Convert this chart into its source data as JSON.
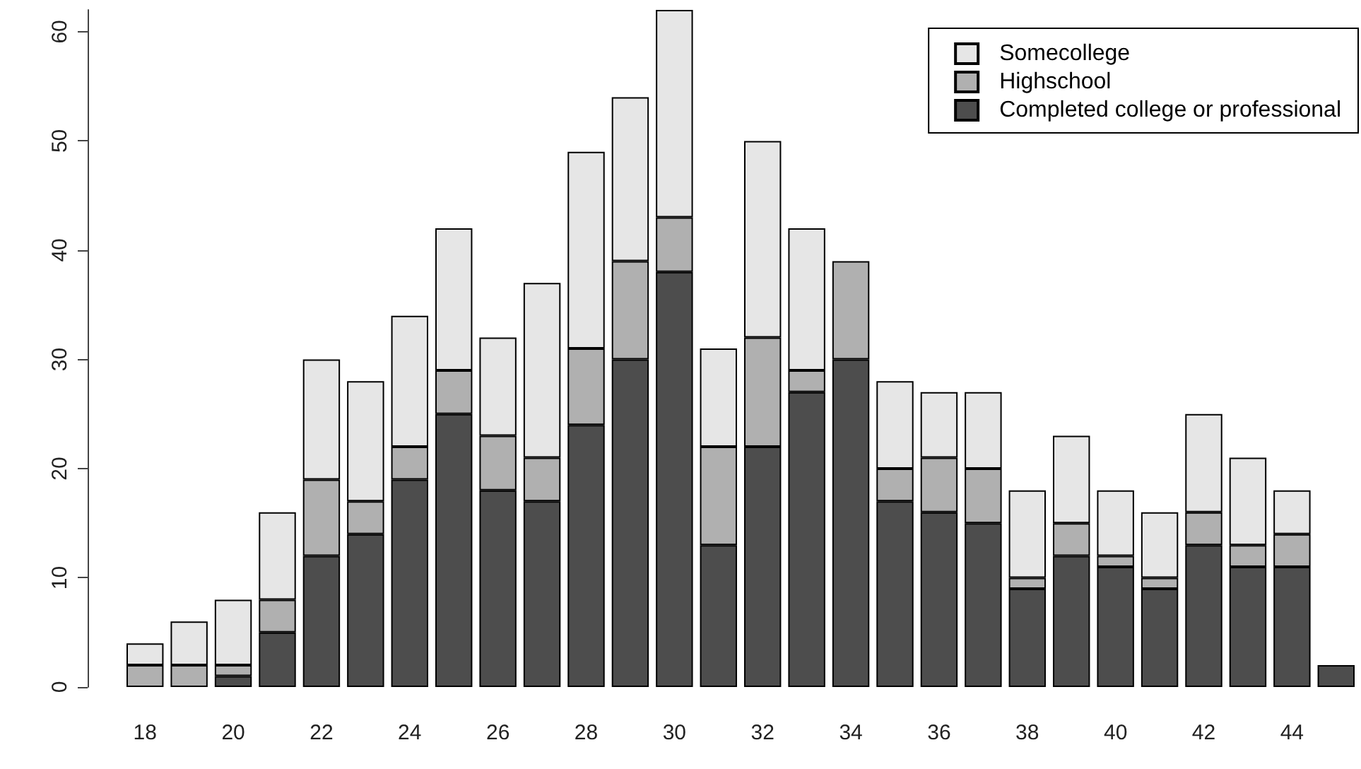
{
  "chart_data": {
    "type": "bar",
    "stacked": true,
    "categories": [
      "18",
      null,
      "20",
      null,
      "22",
      null,
      "24",
      null,
      "26",
      null,
      "28",
      null,
      "30",
      null,
      "32",
      null,
      "34",
      null,
      "36",
      null,
      "38",
      null,
      "40",
      null,
      "42",
      null,
      "44",
      null
    ],
    "series": [
      {
        "name": "Completed college or professional",
        "color": "#4d4d4d",
        "values": [
          0,
          0,
          1,
          5,
          12,
          14,
          19,
          25,
          18,
          17,
          24,
          30,
          38,
          13,
          22,
          27,
          30,
          17,
          16,
          15,
          9,
          12,
          11,
          9,
          13,
          11,
          11,
          2
        ]
      },
      {
        "name": "Highschool",
        "color": "#b0b0b0",
        "values": [
          2,
          2,
          1,
          3,
          7,
          3,
          3,
          4,
          5,
          4,
          7,
          9,
          5,
          9,
          10,
          2,
          9,
          3,
          5,
          5,
          1,
          3,
          1,
          1,
          3,
          2,
          3,
          0
        ]
      },
      {
        "name": "Somecollege",
        "color": "#e6e6e6",
        "values": [
          2,
          4,
          6,
          8,
          11,
          11,
          12,
          13,
          9,
          16,
          18,
          15,
          19,
          9,
          18,
          13,
          null,
          8,
          6,
          7,
          8,
          8,
          6,
          6,
          9,
          8,
          4,
          0
        ]
      }
    ],
    "ylim": [
      0,
      62
    ],
    "yticks": [
      0,
      10,
      20,
      30,
      40,
      50,
      60
    ],
    "grid": false,
    "legend": "top right"
  }
}
